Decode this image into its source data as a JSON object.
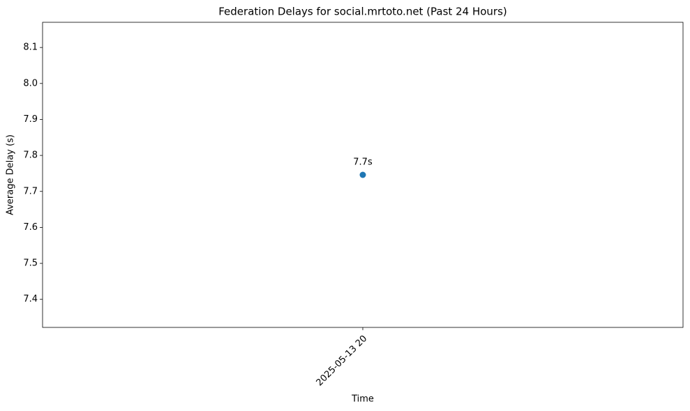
{
  "chart_data": {
    "type": "line",
    "title": "Federation Delays for social.mrtoto.net (Past 24 Hours)",
    "x_label": "Time",
    "y_label": "Average Delay (s)",
    "categories": [
      "2025-05-13 20"
    ],
    "values": [
      7.746
    ],
    "value_labels": [
      "7.7s"
    ],
    "color": "#1f77b4",
    "ylim": [
      7.322,
      8.17
    ],
    "yticks": [
      7.4,
      7.5,
      7.6,
      7.7,
      7.8,
      7.9,
      {
        "value": 8,
        "label": "8.0"
      },
      8.1
    ],
    "grid": false
  }
}
